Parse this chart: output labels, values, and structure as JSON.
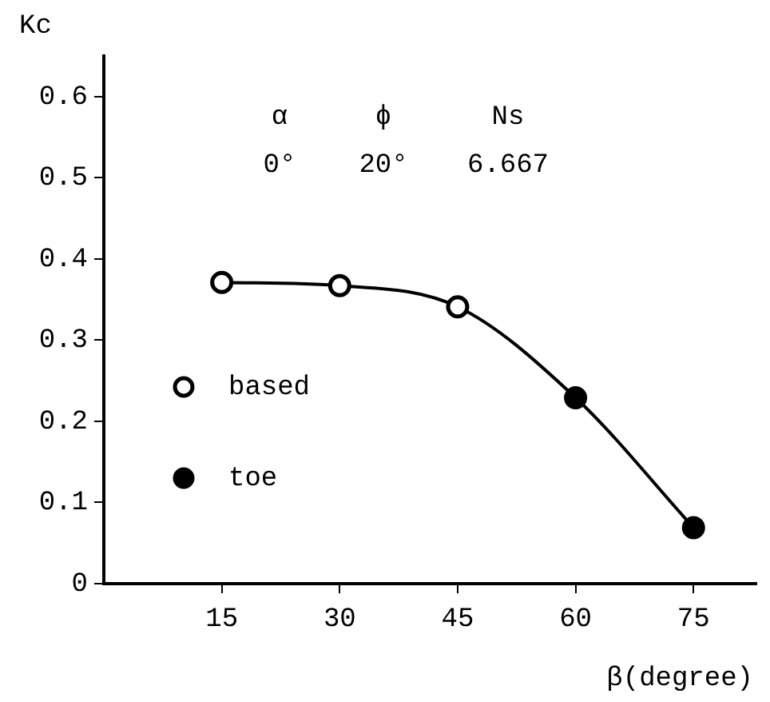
{
  "chart_data": {
    "type": "scatter",
    "xlabel": "β(degree)",
    "ylabel": "Kc",
    "annotations": [
      "α",
      "ϕ",
      "Ns",
      "0°",
      "20°",
      "6.667"
    ],
    "xlim": [
      0,
      83
    ],
    "xticks": [
      15,
      30,
      45,
      60,
      75
    ],
    "ylim": [
      0,
      0.65
    ],
    "yticks": [
      0,
      0.1,
      0.2,
      0.3,
      0.4,
      0.5,
      0.6
    ],
    "series": [
      {
        "name": "based",
        "type": "scatter",
        "color": "#000000",
        "marker": "circle",
        "x": [
          15,
          30,
          45
        ],
        "values": [
          0.371,
          0.367,
          0.341
        ]
      },
      {
        "name": "toe",
        "type": "scatter",
        "color": "#000000",
        "marker": "circle",
        "x": [
          60,
          75
        ],
        "values": [
          0.229,
          0.069
        ]
      },
      {
        "type": "line",
        "color": "#000000",
        "marker": "none",
        "x": [
          15,
          30,
          45,
          60,
          75
        ],
        "values": [
          0.371,
          0.367,
          0.341,
          0.229,
          0.069
        ]
      }
    ],
    "grid": false,
    "legend": "left"
  }
}
